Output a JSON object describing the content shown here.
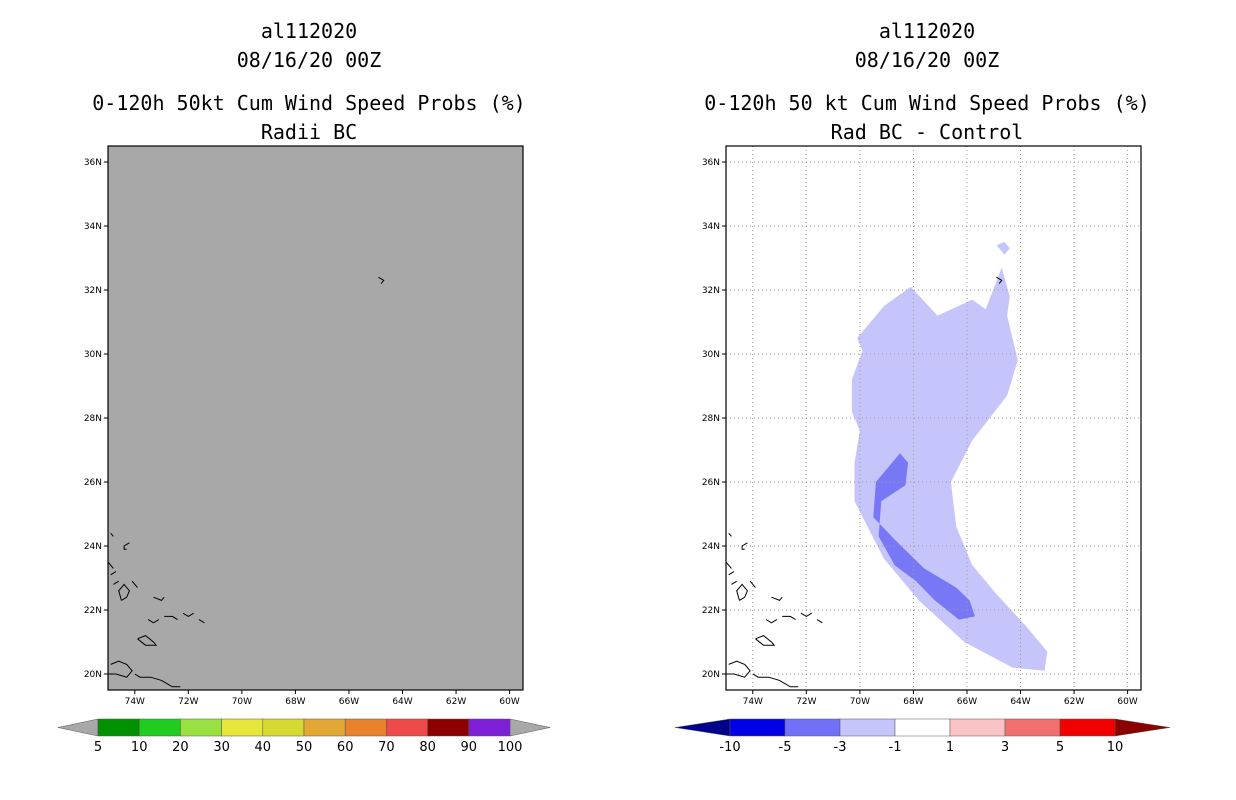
{
  "chart_data": [
    {
      "type": "map",
      "storm_id": "al112020",
      "date": "08/16/20 00Z",
      "title": "0-120h 50kt Cum Wind Speed Probs (%)",
      "subtitle": "Radii BC",
      "lon_range": [
        -75,
        -59.5
      ],
      "lat_range": [
        19.5,
        36.5
      ],
      "x_ticks": [
        "74W",
        "72W",
        "70W",
        "68W",
        "66W",
        "64W",
        "62W",
        "60W"
      ],
      "x_tick_values": [
        -74,
        -72,
        -70,
        -68,
        -66,
        -64,
        -62,
        -60
      ],
      "y_ticks": [
        "20N",
        "22N",
        "24N",
        "26N",
        "28N",
        "30N",
        "32N",
        "34N",
        "36N"
      ],
      "y_tick_values": [
        20,
        22,
        24,
        26,
        28,
        30,
        32,
        34,
        36
      ],
      "grid": false,
      "field": "uniform gray (no probability contours)",
      "colorbar": {
        "labels": [
          "5",
          "10",
          "20",
          "30",
          "40",
          "50",
          "60",
          "70",
          "80",
          "90",
          "100"
        ],
        "colors": [
          "#009100",
          "#21cc21",
          "#98e140",
          "#e7e63c",
          "#d8d832",
          "#e3a733",
          "#e9822c",
          "#ef4a4a",
          "#8c0000",
          "#7c1fd6"
        ],
        "extend_color": "#a8a8a8"
      },
      "background_color": "#a8a8a8"
    },
    {
      "type": "map",
      "storm_id": "al112020",
      "date": "08/16/20 00Z",
      "title": "0-120h 50 kt Cum Wind Speed Probs (%)",
      "subtitle": "Rad BC - Control",
      "lon_range": [
        -75,
        -59.5
      ],
      "lat_range": [
        19.5,
        36.5
      ],
      "x_ticks": [
        "74W",
        "72W",
        "70W",
        "68W",
        "66W",
        "64W",
        "62W",
        "60W"
      ],
      "x_tick_values": [
        -74,
        -72,
        -70,
        -68,
        -66,
        -64,
        -62,
        -60
      ],
      "y_ticks": [
        "20N",
        "22N",
        "24N",
        "26N",
        "28N",
        "30N",
        "32N",
        "34N",
        "36N"
      ],
      "y_tick_values": [
        20,
        22,
        24,
        26,
        28,
        30,
        32,
        34,
        36
      ],
      "grid": true,
      "contours": [
        {
          "level": "-3 to -1",
          "color": "#c5c5fc",
          "lonlat": [
            [
              -64.1,
              29.8
            ],
            [
              -64.5,
              31.2
            ],
            [
              -64.4,
              31.8
            ],
            [
              -64.7,
              32.7
            ],
            [
              -65.3,
              31.4
            ],
            [
              -65.8,
              31.7
            ],
            [
              -67.1,
              31.2
            ],
            [
              -68.1,
              32.1
            ],
            [
              -69.1,
              31.5
            ],
            [
              -70.1,
              30.5
            ],
            [
              -69.9,
              30.1
            ],
            [
              -70.3,
              29.2
            ],
            [
              -70.3,
              28.2
            ],
            [
              -70.0,
              27.6
            ],
            [
              -70.2,
              26.6
            ],
            [
              -70.2,
              25.4
            ],
            [
              -69.1,
              23.6
            ],
            [
              -67.8,
              22.3
            ],
            [
              -66.1,
              21.0
            ],
            [
              -64.3,
              20.2
            ],
            [
              -63.1,
              20.1
            ],
            [
              -63.0,
              20.7
            ],
            [
              -63.8,
              21.5
            ],
            [
              -64.9,
              22.5
            ],
            [
              -65.8,
              23.4
            ],
            [
              -66.4,
              24.6
            ],
            [
              -66.6,
              26.0
            ],
            [
              -65.8,
              27.3
            ],
            [
              -64.5,
              28.7
            ]
          ]
        },
        {
          "level": "-3 to -1",
          "color": "#c5c5fc",
          "lonlat": [
            [
              -64.6,
              33.5
            ],
            [
              -64.4,
              33.3
            ],
            [
              -64.6,
              33.1
            ],
            [
              -64.9,
              33.4
            ]
          ]
        },
        {
          "level": "-5 to -3",
          "color": "#7878f6",
          "lonlat": [
            [
              -68.5,
              26.9
            ],
            [
              -69.4,
              26.0
            ],
            [
              -69.5,
              24.9
            ],
            [
              -68.7,
              24.2
            ],
            [
              -67.6,
              23.3
            ],
            [
              -66.4,
              22.7
            ],
            [
              -65.9,
              22.3
            ],
            [
              -65.7,
              21.8
            ],
            [
              -66.3,
              21.7
            ],
            [
              -67.2,
              22.3
            ],
            [
              -67.9,
              22.9
            ],
            [
              -68.7,
              23.4
            ],
            [
              -69.3,
              24.3
            ],
            [
              -69.2,
              25.4
            ],
            [
              -68.3,
              25.9
            ],
            [
              -68.2,
              26.6
            ]
          ]
        }
      ],
      "colorbar": {
        "labels": [
          "-10",
          "-5",
          "-3",
          "-1",
          "1",
          "3",
          "5",
          "10"
        ],
        "colors": [
          "#0000e6",
          "#7070f8",
          "#c5c5fc",
          "#ffffff",
          "#fbc4c4",
          "#f07070",
          "#f20000"
        ],
        "extend_low_color": "#00008c",
        "extend_high_color": "#8c0000"
      },
      "background_color": "#ffffff"
    }
  ]
}
